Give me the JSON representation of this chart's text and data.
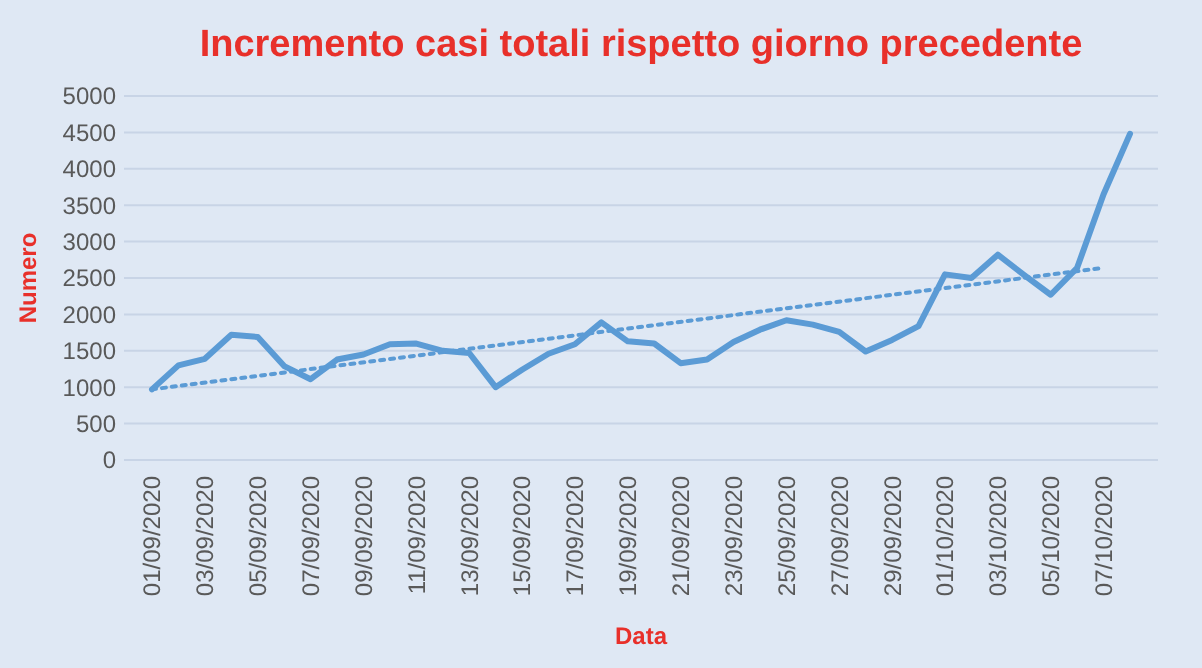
{
  "chart_data": {
    "type": "line",
    "title": "Incremento casi totali rispetto giorno precedente",
    "xlabel": "Data",
    "ylabel": "Numero",
    "categories": [
      "01/09/2020",
      null,
      "03/09/2020",
      null,
      "05/09/2020",
      null,
      "07/09/2020",
      null,
      "09/09/2020",
      null,
      "11/09/2020",
      null,
      "13/09/2020",
      null,
      "15/09/2020",
      null,
      "17/09/2020",
      null,
      "19/09/2020",
      null,
      "21/09/2020",
      null,
      "23/09/2020",
      null,
      "25/09/2020",
      null,
      "27/09/2020",
      null,
      "29/09/2020",
      null,
      "01/10/2020",
      null,
      "03/10/2020",
      null,
      "05/10/2020",
      null,
      "07/10/2020",
      null
    ],
    "series": [
      {
        "color": "#5b9bd5",
        "line_style": "solid",
        "values": [
          970,
          1300,
          1390,
          1720,
          1690,
          1290,
          1110,
          1380,
          1450,
          1590,
          1600,
          1500,
          1470,
          1000,
          1240,
          1460,
          1590,
          1890,
          1630,
          1600,
          1330,
          1380,
          1620,
          1790,
          1920,
          1860,
          1760,
          1490,
          1650,
          1840,
          2550,
          2500,
          2820,
          2540,
          2270,
          2640,
          3650,
          4480
        ]
      },
      {
        "type": "line",
        "color": "#5b9bd5",
        "line_style": "dotted",
        "x": [
          "01/09/2020",
          "07/10/2020"
        ],
        "values": [
          970,
          2640
        ]
      }
    ],
    "ylim": [
      0,
      5000
    ],
    "yticks": [
      0,
      500,
      1000,
      1500,
      2000,
      2500,
      3000,
      3500,
      4000,
      4500,
      5000
    ],
    "grid": "y"
  }
}
